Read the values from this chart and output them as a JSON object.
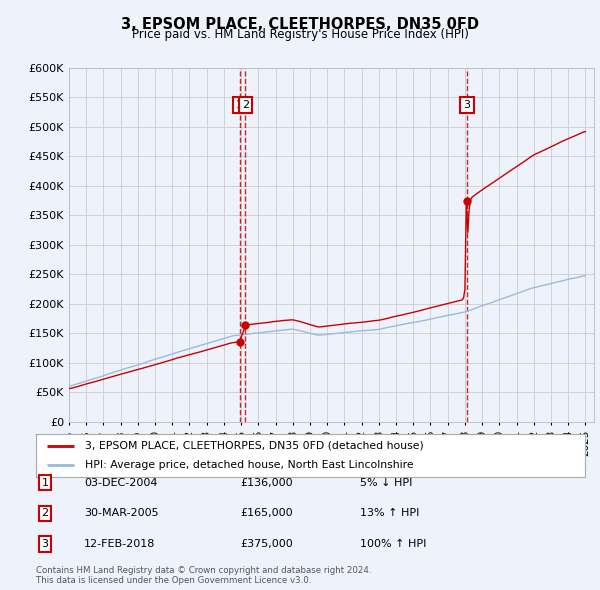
{
  "title": "3, EPSOM PLACE, CLEETHORPES, DN35 0FD",
  "subtitle": "Price paid vs. HM Land Registry's House Price Index (HPI)",
  "ylim": [
    0,
    600000
  ],
  "yticks": [
    0,
    50000,
    100000,
    150000,
    200000,
    250000,
    300000,
    350000,
    400000,
    450000,
    500000,
    550000,
    600000
  ],
  "ytick_labels": [
    "£0",
    "£50K",
    "£100K",
    "£150K",
    "£200K",
    "£250K",
    "£300K",
    "£350K",
    "£400K",
    "£450K",
    "£500K",
    "£550K",
    "£600K"
  ],
  "xlim_start": 1995.0,
  "xlim_end": 2025.5,
  "line1_color": "#cc0000",
  "line2_color": "#99bbdd",
  "background_color": "#eef2fa",
  "plot_bg_color": "#eef2fa",
  "grid_color": "#cccccc",
  "annotations": [
    {
      "num": 1,
      "date_label": "03-DEC-2004",
      "price": "£136,000",
      "change": "5% ↓ HPI",
      "x_year": 2004.92,
      "y_price": 136000
    },
    {
      "num": 2,
      "date_label": "30-MAR-2005",
      "price": "£165,000",
      "change": "13% ↑ HPI",
      "x_year": 2005.25,
      "y_price": 165000
    },
    {
      "num": 3,
      "date_label": "12-FEB-2018",
      "price": "£375,000",
      "change": "100% ↑ HPI",
      "x_year": 2018.12,
      "y_price": 375000
    }
  ],
  "legend_line1": "3, EPSOM PLACE, CLEETHORPES, DN35 0FD (detached house)",
  "legend_line2": "HPI: Average price, detached house, North East Lincolnshire",
  "footnote": "Contains HM Land Registry data © Crown copyright and database right 2024.\nThis data is licensed under the Open Government Licence v3.0.",
  "table_rows": [
    [
      "1",
      "03-DEC-2004",
      "£136,000",
      "5% ↓ HPI"
    ],
    [
      "2",
      "30-MAR-2005",
      "£165,000",
      "13% ↑ HPI"
    ],
    [
      "3",
      "12-FEB-2018",
      "£375,000",
      "100% ↑ HPI"
    ]
  ]
}
